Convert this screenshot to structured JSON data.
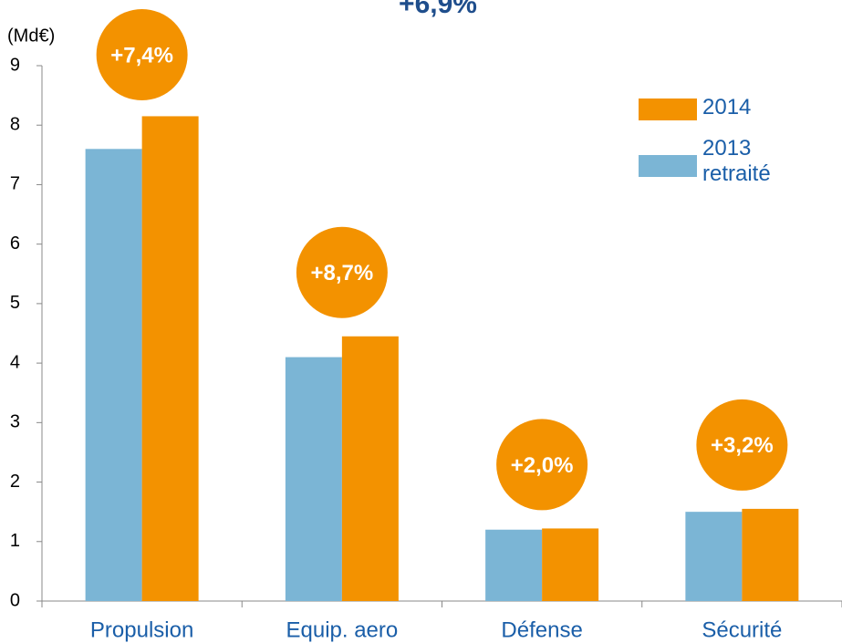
{
  "chart_data": {
    "type": "bar",
    "title": "+6,9%",
    "y_axis_label": "(Md€)",
    "categories": [
      "Propulsion",
      "Equip. aero",
      "Défense",
      "Sécurité"
    ],
    "series": [
      {
        "name": "2013 retraité",
        "color": "#7bb5d5",
        "values": [
          7.6,
          4.1,
          1.2,
          1.5
        ]
      },
      {
        "name": "2014",
        "color": "#f39200",
        "values": [
          8.15,
          4.45,
          1.22,
          1.55
        ]
      }
    ],
    "growth_labels": [
      "+7,4%",
      "+8,7%",
      "+2,0%",
      "+3,2%"
    ],
    "ylim": [
      0,
      9
    ],
    "yticks": [
      0,
      1,
      2,
      3,
      4,
      5,
      6,
      7,
      8,
      9
    ],
    "grid": false,
    "legend": "upper right"
  }
}
